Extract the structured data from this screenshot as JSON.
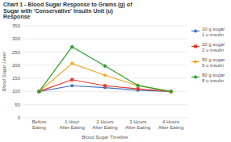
{
  "chart_data": {
    "type": "line",
    "title": "Chart 1 - Blood Sugar Response to Grams (g) of\nSugar with 'Conservative' Insulin Unit (u)\nResponse",
    "x_label": "Blood Sugar Timeline",
    "y_label": "Blood Sugar Level",
    "categories": [
      "Before\nEating",
      "1 Hour\nAfter Eating",
      "2 Hours\nAfter Eating",
      "3 Hours\nAfter Eating",
      "4 Hours\nAfter Eating"
    ],
    "series": [
      {
        "name": "10 g sugar\n1 u insulin",
        "color": "#4472C4",
        "marker": "circle",
        "values": [
          100,
          122,
          115,
          105,
          100
        ]
      },
      {
        "name": "20 g sugar\n2 u insulin",
        "color": "#E8392A",
        "marker": "square",
        "values": [
          100,
          145,
          122,
          110,
          100
        ]
      },
      {
        "name": "50 g sugar\n5 u insulin",
        "color": "#F5A623",
        "marker": "circle",
        "values": [
          100,
          207,
          162,
          122,
          100
        ]
      },
      {
        "name": "80 g sugar\n8 u insulin",
        "color": "#2CA02C",
        "marker": "diamond",
        "values": [
          100,
          270,
          197,
          123,
          100
        ]
      }
    ],
    "ylim": [
      0,
      350
    ],
    "yticks": [
      0,
      50,
      100,
      150,
      200,
      250,
      300,
      350
    ],
    "grid": true,
    "legend": "right"
  }
}
